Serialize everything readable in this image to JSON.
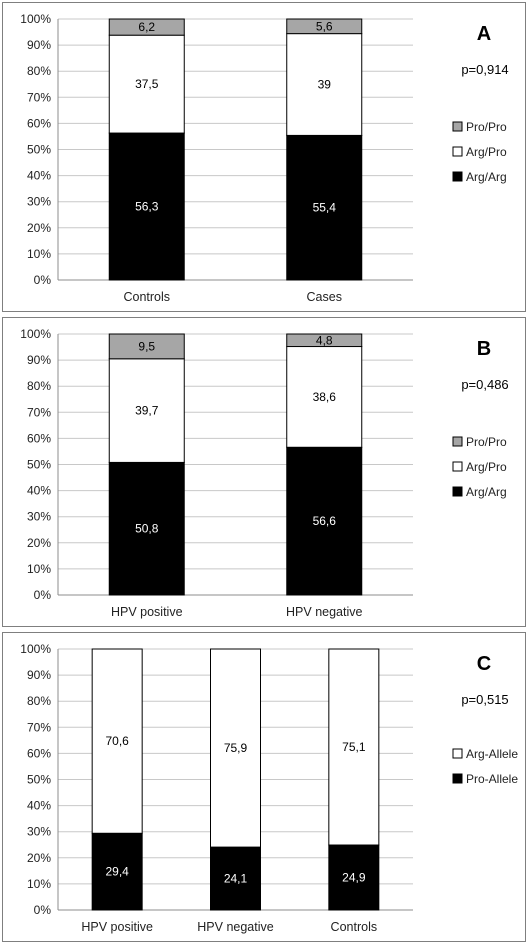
{
  "chart_data": [
    {
      "type": "bar",
      "stacked": true,
      "letter": "A",
      "p_value": "p=0,914",
      "categories": [
        "Controls",
        "Cases"
      ],
      "series": [
        {
          "name": "Arg/Arg",
          "values": [
            56.3,
            55.4
          ],
          "labels": [
            "56,3",
            "55,4"
          ],
          "color": "#000000"
        },
        {
          "name": "Arg/Pro",
          "values": [
            37.5,
            39
          ],
          "labels": [
            "37,5",
            "39"
          ],
          "color": "#ffffff"
        },
        {
          "name": "Pro/Pro",
          "values": [
            6.2,
            5.6
          ],
          "labels": [
            "6,2",
            "5,6"
          ],
          "color": "#a6a6a6"
        }
      ],
      "legend_order": [
        "Pro/Pro",
        "Arg/Pro",
        "Arg/Arg"
      ],
      "ylim": [
        0,
        100
      ],
      "yticks": [
        "0%",
        "10%",
        "20%",
        "30%",
        "40%",
        "50%",
        "60%",
        "70%",
        "80%",
        "90%",
        "100%"
      ],
      "grid": true,
      "legend_position": "right"
    },
    {
      "type": "bar",
      "stacked": true,
      "letter": "B",
      "p_value": "p=0,486",
      "categories": [
        "HPV positive",
        "HPV negative"
      ],
      "series": [
        {
          "name": "Arg/Arg",
          "values": [
            50.8,
            56.6
          ],
          "labels": [
            "50,8",
            "56,6"
          ],
          "color": "#000000"
        },
        {
          "name": "Arg/Pro",
          "values": [
            39.7,
            38.6
          ],
          "labels": [
            "39,7",
            "38,6"
          ],
          "color": "#ffffff"
        },
        {
          "name": "Pro/Pro",
          "values": [
            9.5,
            4.8
          ],
          "labels": [
            "9,5",
            "4,8"
          ],
          "color": "#a6a6a6"
        }
      ],
      "legend_order": [
        "Pro/Pro",
        "Arg/Pro",
        "Arg/Arg"
      ],
      "ylim": [
        0,
        100
      ],
      "yticks": [
        "0%",
        "10%",
        "20%",
        "30%",
        "40%",
        "50%",
        "60%",
        "70%",
        "80%",
        "90%",
        "100%"
      ],
      "grid": true,
      "legend_position": "right"
    },
    {
      "type": "bar",
      "stacked": true,
      "letter": "C",
      "p_value": "p=0,515",
      "categories": [
        "HPV positive",
        "HPV negative",
        "Controls"
      ],
      "series": [
        {
          "name": "Pro-Allele",
          "values": [
            29.4,
            24.1,
            24.9
          ],
          "labels": [
            "29,4",
            "24,1",
            "24,9"
          ],
          "color": "#000000"
        },
        {
          "name": "Arg-Allele",
          "values": [
            70.6,
            75.9,
            75.1
          ],
          "labels": [
            "70,6",
            "75,9",
            "75,1"
          ],
          "color": "#ffffff"
        }
      ],
      "legend_order": [
        "Arg-Allele",
        "Pro-Allele"
      ],
      "ylim": [
        0,
        100
      ],
      "yticks": [
        "0%",
        "10%",
        "20%",
        "30%",
        "40%",
        "50%",
        "60%",
        "70%",
        "80%",
        "90%",
        "100%"
      ],
      "grid": true,
      "legend_position": "right"
    }
  ]
}
